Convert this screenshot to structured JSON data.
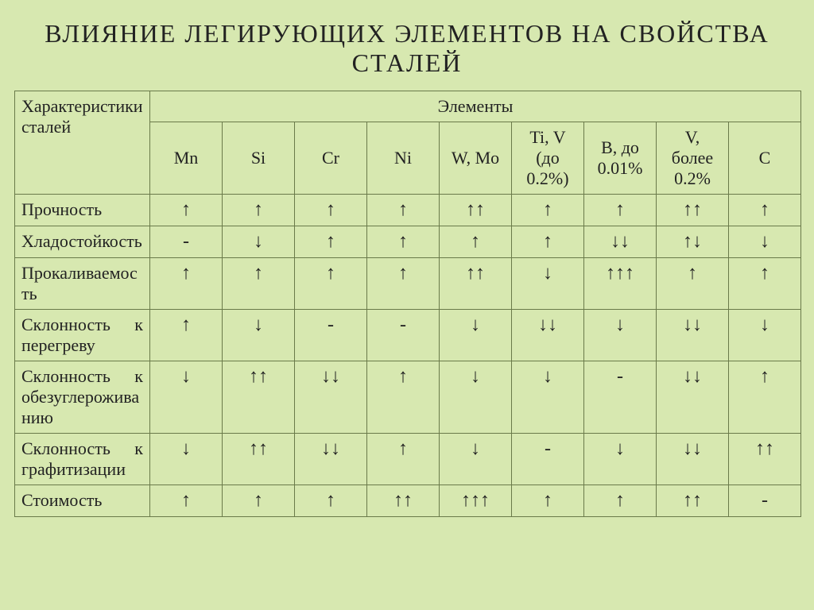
{
  "title": "ВЛИЯНИЕ  ЛЕГИРУЮЩИХ  ЭЛЕМЕНТОВ  НА  СВОЙСТВА  СТАЛЕЙ",
  "table": {
    "type": "table",
    "background_color": "#d7e8b0",
    "border_color": "#6a7a4a",
    "text_color": "#222222",
    "title_fontsize": 32,
    "cell_fontsize": 22,
    "arrow_fontsize": 24,
    "row_header": "Характеристики сталей",
    "col_header": "Элементы",
    "columns": [
      "Mn",
      "Si",
      "Cr",
      "Ni",
      "W, Mo",
      "Ti, V (до 0.2%)",
      "B, до 0.01%",
      "V, более 0.2%",
      "C"
    ],
    "rows": [
      {
        "label": "Прочность",
        "cells": [
          "↑",
          "↑",
          "↑",
          "↑",
          "↑↑",
          "↑",
          "↑",
          "↑↑",
          "↑"
        ]
      },
      {
        "label": "Хладостойкость",
        "cells": [
          "-",
          "↓",
          "↑",
          "↑",
          "↑",
          "↑",
          "↓↓",
          "↑↓",
          "↓"
        ]
      },
      {
        "label": "Прокаливаемость",
        "cells": [
          "↑",
          "↑",
          "↑",
          "↑",
          "↑↑",
          "↓",
          "↑↑↑",
          "↑",
          "↑"
        ]
      },
      {
        "label": "Склонность к перегреву",
        "cells": [
          "↑",
          "↓",
          "-",
          "-",
          "↓",
          "↓↓",
          "↓",
          "↓↓",
          "↓"
        ]
      },
      {
        "label": "Склонность к обезуглероживанию",
        "cells": [
          "↓",
          "↑↑",
          "↓↓",
          "↑",
          "↓",
          "↓",
          "-",
          "↓↓",
          "↑"
        ]
      },
      {
        "label": "Склонность к графитизации",
        "cells": [
          "↓",
          "↑↑",
          "↓↓",
          "↑",
          "↓",
          "-",
          "↓",
          "↓↓",
          "↑↑"
        ]
      },
      {
        "label": "Стоимость",
        "cells": [
          "↑",
          "↑",
          "↑",
          "↑↑",
          "↑↑↑",
          "↑",
          "↑",
          "↑↑",
          "-"
        ]
      }
    ]
  }
}
